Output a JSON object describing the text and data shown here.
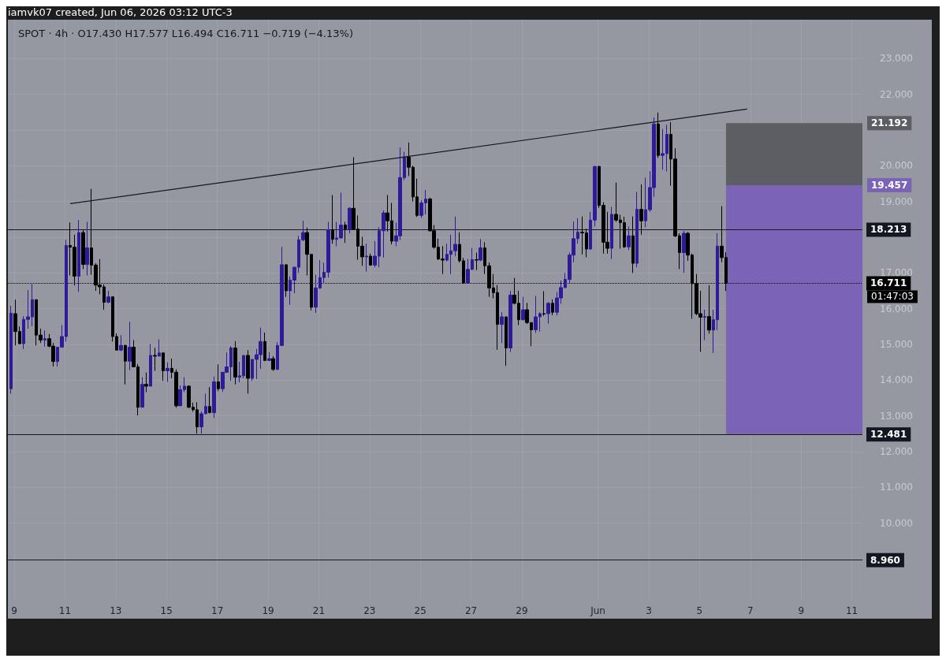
{
  "chart_data": {
    "type": "candlestick",
    "title": "iamvk07 created, Jun 06, 2026 03:12 UTC-3",
    "subtitle": "SPOT · 4h · O17.430 H17.577 L16.494 C16.711 −0.719 (−4.13%)",
    "x": [
      "2026-05-08T21:00",
      "2026-05-09T01:00",
      "2026-05-09T05:00",
      "2026-05-09T09:00",
      "2026-05-09T13:00",
      "2026-05-09T17:00",
      "2026-05-09T21:00",
      "2026-05-10T01:00",
      "2026-05-10T05:00",
      "2026-05-10T09:00",
      "2026-05-10T13:00",
      "2026-05-10T17:00",
      "2026-05-10T21:00",
      "2026-05-11T01:00",
      "2026-05-11T05:00",
      "2026-05-11T09:00",
      "2026-05-11T13:00",
      "2026-05-11T17:00",
      "2026-05-11T21:00",
      "2026-05-12T01:00",
      "2026-05-12T05:00",
      "2026-05-12T09:00",
      "2026-05-12T13:00",
      "2026-05-12T17:00",
      "2026-05-12T21:00",
      "2026-05-13T01:00",
      "2026-05-13T05:00",
      "2026-05-13T09:00",
      "2026-05-13T13:00",
      "2026-05-13T17:00",
      "2026-05-13T21:00",
      "2026-05-14T01:00",
      "2026-05-14T05:00",
      "2026-05-14T09:00",
      "2026-05-14T13:00",
      "2026-05-14T17:00",
      "2026-05-14T21:00",
      "2026-05-15T01:00",
      "2026-05-15T05:00",
      "2026-05-15T09:00",
      "2026-05-15T13:00",
      "2026-05-15T17:00",
      "2026-05-15T21:00",
      "2026-05-16T01:00",
      "2026-05-16T05:00",
      "2026-05-16T09:00",
      "2026-05-16T13:00",
      "2026-05-16T17:00",
      "2026-05-16T21:00",
      "2026-05-17T01:00",
      "2026-05-17T05:00",
      "2026-05-17T09:00",
      "2026-05-17T13:00",
      "2026-05-17T17:00",
      "2026-05-17T21:00",
      "2026-05-18T01:00",
      "2026-05-18T05:00",
      "2026-05-18T09:00",
      "2026-05-18T13:00",
      "2026-05-18T17:00",
      "2026-05-18T21:00",
      "2026-05-19T01:00",
      "2026-05-19T05:00",
      "2026-05-19T09:00",
      "2026-05-19T13:00",
      "2026-05-19T17:00",
      "2026-05-19T21:00",
      "2026-05-20T01:00",
      "2026-05-20T05:00",
      "2026-05-20T09:00",
      "2026-05-20T13:00",
      "2026-05-20T17:00",
      "2026-05-20T21:00",
      "2026-05-21T01:00",
      "2026-05-21T05:00",
      "2026-05-21T09:00",
      "2026-05-21T13:00",
      "2026-05-21T17:00",
      "2026-05-21T21:00",
      "2026-05-22T01:00",
      "2026-05-22T05:00",
      "2026-05-22T09:00",
      "2026-05-22T13:00",
      "2026-05-22T17:00",
      "2026-05-22T21:00",
      "2026-05-23T01:00",
      "2026-05-23T05:00",
      "2026-05-23T09:00",
      "2026-05-23T13:00",
      "2026-05-23T17:00",
      "2026-05-23T21:00",
      "2026-05-24T01:00",
      "2026-05-24T05:00",
      "2026-05-24T09:00",
      "2026-05-24T13:00",
      "2026-05-24T17:00",
      "2026-05-24T21:00",
      "2026-05-25T01:00",
      "2026-05-25T05:00",
      "2026-05-25T09:00",
      "2026-05-25T13:00",
      "2026-05-25T17:00",
      "2026-05-25T21:00",
      "2026-05-26T01:00",
      "2026-05-26T05:00",
      "2026-05-26T09:00",
      "2026-05-26T13:00",
      "2026-05-26T17:00",
      "2026-05-26T21:00",
      "2026-05-27T01:00",
      "2026-05-27T05:00",
      "2026-05-27T09:00",
      "2026-05-27T13:00",
      "2026-05-27T17:00",
      "2026-05-27T21:00",
      "2026-05-28T01:00",
      "2026-05-28T05:00",
      "2026-05-28T09:00",
      "2026-05-28T13:00",
      "2026-05-28T17:00",
      "2026-05-28T21:00",
      "2026-05-29T01:00",
      "2026-05-29T05:00",
      "2026-05-29T09:00",
      "2026-05-29T13:00",
      "2026-05-29T17:00",
      "2026-05-29T21:00",
      "2026-05-30T01:00",
      "2026-05-30T05:00",
      "2026-05-30T09:00",
      "2026-05-30T13:00",
      "2026-05-30T17:00",
      "2026-05-30T21:00",
      "2026-05-31T01:00",
      "2026-05-31T05:00",
      "2026-05-31T09:00",
      "2026-05-31T13:00",
      "2026-05-31T17:00",
      "2026-05-31T21:00",
      "2026-06-01T01:00",
      "2026-06-01T05:00",
      "2026-06-01T09:00",
      "2026-06-01T13:00",
      "2026-06-01T17:00",
      "2026-06-01T21:00",
      "2026-06-02T01:00",
      "2026-06-02T05:00",
      "2026-06-02T09:00",
      "2026-06-02T13:00",
      "2026-06-02T17:00",
      "2026-06-02T21:00",
      "2026-06-03T01:00",
      "2026-06-03T05:00",
      "2026-06-03T09:00",
      "2026-06-03T13:00",
      "2026-06-03T17:00",
      "2026-06-03T21:00",
      "2026-06-04T01:00",
      "2026-06-04T05:00",
      "2026-06-04T09:00",
      "2026-06-04T13:00",
      "2026-06-04T17:00",
      "2026-06-04T21:00",
      "2026-06-05T01:00",
      "2026-06-05T05:00",
      "2026-06-05T09:00",
      "2026-06-05T13:00",
      "2026-06-05T17:00",
      "2026-06-05T21:00",
      "2026-06-06T01:00"
    ],
    "ohlc": [
      [
        13.76,
        16.08,
        13.62,
        15.87
      ],
      [
        15.86,
        16.25,
        14.97,
        15.36
      ],
      [
        15.36,
        15.5,
        15.0,
        15.02
      ],
      [
        15.02,
        15.79,
        14.87,
        15.7
      ],
      [
        15.7,
        16.52,
        15.44,
        15.77
      ],
      [
        15.77,
        16.72,
        15.51,
        16.25
      ],
      [
        16.25,
        16.25,
        14.97,
        15.26
      ],
      [
        15.26,
        15.44,
        15.04,
        15.12
      ],
      [
        15.12,
        15.39,
        14.94,
        15.16
      ],
      [
        15.16,
        15.29,
        14.92,
        14.95
      ],
      [
        14.95,
        15.04,
        14.38,
        14.52
      ],
      [
        14.52,
        14.92,
        14.38,
        14.92
      ],
      [
        14.92,
        15.54,
        14.92,
        15.22
      ],
      [
        15.22,
        17.93,
        15.08,
        17.77
      ],
      [
        17.77,
        18.41,
        16.93,
        17.72
      ],
      [
        17.72,
        18.07,
        16.65,
        16.91
      ],
      [
        16.91,
        18.48,
        16.47,
        18.13
      ],
      [
        18.13,
        18.2,
        17.11,
        17.24
      ],
      [
        17.24,
        18.43,
        16.93,
        17.7
      ],
      [
        17.7,
        19.35,
        16.95,
        17.22
      ],
      [
        17.22,
        17.27,
        16.5,
        16.66
      ],
      [
        16.66,
        17.39,
        16.4,
        16.61
      ],
      [
        16.61,
        16.68,
        15.97,
        16.18
      ],
      [
        16.18,
        16.5,
        16.15,
        16.33
      ],
      [
        16.33,
        16.33,
        15.08,
        15.22
      ],
      [
        15.22,
        15.31,
        14.84,
        14.84
      ],
      [
        14.84,
        15.26,
        14.81,
        14.97
      ],
      [
        14.97,
        14.99,
        13.88,
        14.53
      ],
      [
        14.53,
        15.63,
        14.28,
        14.92
      ],
      [
        14.92,
        15.12,
        14.37,
        14.37
      ],
      [
        14.37,
        14.45,
        13.01,
        13.24
      ],
      [
        13.24,
        14.08,
        13.24,
        13.88
      ],
      [
        13.88,
        14.21,
        13.66,
        13.83
      ],
      [
        13.83,
        15.01,
        13.83,
        14.69
      ],
      [
        14.69,
        14.9,
        14.26,
        14.67
      ],
      [
        14.67,
        15.14,
        14.67,
        14.76
      ],
      [
        14.76,
        14.76,
        13.98,
        14.26
      ],
      [
        14.26,
        14.5,
        13.95,
        14.33
      ],
      [
        14.33,
        14.6,
        14.05,
        14.22
      ],
      [
        14.22,
        14.3,
        13.23,
        13.28
      ],
      [
        13.28,
        13.85,
        13.28,
        13.73
      ],
      [
        13.73,
        14.08,
        13.66,
        13.83
      ],
      [
        13.83,
        13.85,
        13.21,
        13.24
      ],
      [
        13.24,
        13.37,
        13.12,
        13.17
      ],
      [
        13.17,
        13.38,
        12.5,
        12.69
      ],
      [
        12.69,
        13.12,
        12.5,
        13.06
      ],
      [
        13.06,
        13.62,
        13.04,
        13.26
      ],
      [
        13.26,
        13.8,
        13.07,
        13.09
      ],
      [
        13.09,
        14.1,
        12.94,
        13.95
      ],
      [
        13.95,
        14.44,
        13.69,
        13.76
      ],
      [
        13.76,
        14.22,
        13.67,
        14.22
      ],
      [
        14.22,
        14.77,
        14.2,
        14.37
      ],
      [
        14.37,
        14.95,
        13.98,
        14.9
      ],
      [
        14.9,
        15.09,
        13.88,
        14.08
      ],
      [
        14.08,
        14.51,
        13.94,
        14.12
      ],
      [
        14.12,
        14.69,
        14.05,
        14.69
      ],
      [
        14.69,
        14.84,
        13.62,
        14.05
      ],
      [
        14.05,
        14.58,
        13.98,
        14.58
      ],
      [
        14.58,
        14.87,
        14.03,
        14.71
      ],
      [
        14.71,
        15.47,
        14.31,
        15.08
      ],
      [
        15.08,
        15.33,
        14.53,
        14.55
      ],
      [
        14.55,
        14.78,
        14.53,
        14.6
      ],
      [
        14.6,
        14.67,
        14.26,
        14.3
      ],
      [
        14.3,
        15.06,
        14.28,
        14.97
      ],
      [
        14.97,
        17.73,
        14.95,
        17.23
      ],
      [
        17.23,
        17.23,
        16.33,
        16.5
      ],
      [
        16.5,
        16.9,
        16.11,
        16.8
      ],
      [
        16.8,
        17.16,
        16.43,
        17.16
      ],
      [
        17.16,
        18.04,
        17.0,
        17.93
      ],
      [
        17.93,
        18.46,
        17.89,
        18.13
      ],
      [
        18.13,
        18.27,
        16.93,
        17.52
      ],
      [
        17.52,
        17.52,
        15.95,
        16.04
      ],
      [
        16.04,
        16.95,
        15.88,
        16.58
      ],
      [
        16.58,
        17.36,
        16.55,
        16.87
      ],
      [
        16.87,
        17.29,
        16.7,
        17.02
      ],
      [
        17.02,
        18.43,
        16.87,
        18.21
      ],
      [
        18.21,
        19.18,
        17.82,
        17.94
      ],
      [
        17.94,
        18.43,
        17.75,
        17.98
      ],
      [
        17.98,
        19.25,
        17.96,
        18.34
      ],
      [
        18.34,
        18.43,
        17.84,
        18.23
      ],
      [
        18.23,
        18.84,
        18.11,
        18.81
      ],
      [
        18.81,
        20.24,
        18.23,
        18.23
      ],
      [
        18.23,
        18.61,
        17.37,
        17.75
      ],
      [
        17.75,
        18.01,
        17.2,
        17.45
      ],
      [
        17.45,
        17.82,
        17.04,
        17.47
      ],
      [
        17.47,
        17.54,
        17.2,
        17.22
      ],
      [
        17.22,
        17.89,
        17.16,
        17.47
      ],
      [
        17.47,
        18.28,
        17.16,
        18.18
      ],
      [
        18.18,
        18.75,
        17.43,
        18.68
      ],
      [
        18.68,
        19.18,
        18.16,
        18.46
      ],
      [
        18.46,
        18.96,
        17.8,
        17.89
      ],
      [
        17.89,
        18.41,
        17.75,
        18.04
      ],
      [
        18.04,
        20.51,
        17.92,
        19.67
      ],
      [
        19.67,
        20.39,
        19.6,
        20.24
      ],
      [
        20.24,
        20.65,
        19.71,
        19.96
      ],
      [
        19.96,
        20.0,
        19.0,
        19.13
      ],
      [
        19.13,
        19.64,
        18.57,
        18.61
      ],
      [
        18.61,
        19.04,
        18.54,
        18.96
      ],
      [
        18.96,
        19.32,
        18.64,
        19.07
      ],
      [
        19.07,
        19.11,
        18.16,
        18.18
      ],
      [
        18.18,
        18.34,
        17.68,
        17.72
      ],
      [
        17.72,
        17.96,
        17.36,
        17.39
      ],
      [
        17.39,
        17.75,
        16.97,
        17.36
      ],
      [
        17.36,
        17.82,
        17.32,
        17.52
      ],
      [
        17.52,
        18.07,
        16.97,
        17.62
      ],
      [
        17.62,
        18.58,
        17.47,
        17.8
      ],
      [
        17.8,
        18.14,
        17.29,
        17.34
      ],
      [
        17.34,
        17.42,
        16.7,
        16.72
      ],
      [
        16.72,
        17.39,
        16.7,
        17.1
      ],
      [
        17.1,
        17.7,
        17.08,
        17.37
      ],
      [
        17.37,
        17.57,
        17.08,
        17.36
      ],
      [
        17.36,
        17.95,
        17.33,
        17.7
      ],
      [
        17.7,
        17.86,
        16.97,
        17.2
      ],
      [
        17.2,
        17.29,
        16.33,
        16.58
      ],
      [
        16.58,
        16.97,
        16.29,
        16.45
      ],
      [
        16.45,
        16.66,
        14.85,
        15.56
      ],
      [
        15.56,
        15.9,
        15.04,
        15.77
      ],
      [
        15.77,
        15.77,
        14.4,
        14.9
      ],
      [
        14.9,
        16.5,
        14.79,
        16.38
      ],
      [
        16.38,
        16.86,
        16.12,
        16.15
      ],
      [
        16.15,
        16.5,
        15.54,
        15.69
      ],
      [
        15.69,
        16.33,
        15.67,
        15.97
      ],
      [
        15.97,
        16.16,
        15.57,
        15.61
      ],
      [
        15.61,
        15.61,
        14.95,
        15.41
      ],
      [
        15.41,
        16.35,
        15.32,
        15.77
      ],
      [
        15.77,
        15.9,
        15.36,
        15.86
      ],
      [
        15.86,
        16.49,
        15.8,
        15.85
      ],
      [
        15.86,
        16.18,
        15.58,
        16.15
      ],
      [
        16.15,
        16.26,
        15.82,
        15.9
      ],
      [
        15.9,
        16.47,
        15.81,
        16.3
      ],
      [
        16.3,
        16.79,
        16.14,
        16.59
      ],
      [
        16.59,
        17.0,
        16.57,
        16.82
      ],
      [
        16.82,
        17.57,
        16.72,
        17.5
      ],
      [
        17.5,
        18.44,
        17.3,
        17.96
      ],
      [
        17.96,
        18.53,
        17.82,
        18.14
      ],
      [
        18.14,
        18.58,
        17.52,
        18.12
      ],
      [
        18.12,
        18.24,
        17.44,
        17.67
      ],
      [
        17.67,
        18.71,
        17.65,
        18.48
      ],
      [
        18.48,
        20.0,
        18.3,
        19.98
      ],
      [
        19.98,
        20.0,
        18.82,
        18.89
      ],
      [
        18.89,
        18.98,
        17.54,
        17.86
      ],
      [
        17.86,
        18.71,
        17.54,
        17.69
      ],
      [
        17.69,
        18.85,
        17.39,
        18.64
      ],
      [
        18.64,
        19.53,
        18.43,
        18.48
      ],
      [
        18.48,
        18.63,
        17.68,
        18.41
      ],
      [
        18.41,
        18.57,
        17.7,
        17.73
      ],
      [
        17.73,
        18.3,
        17.64,
        18.04
      ],
      [
        18.04,
        18.58,
        17.0,
        17.27
      ],
      [
        17.27,
        19.27,
        17.16,
        18.78
      ],
      [
        18.78,
        19.48,
        18.07,
        18.46
      ],
      [
        18.46,
        19.67,
        18.28,
        18.77
      ],
      [
        18.77,
        19.85,
        18.71,
        19.39
      ],
      [
        19.39,
        21.35,
        19.13,
        21.17
      ],
      [
        21.17,
        21.49,
        20.22,
        20.29
      ],
      [
        20.29,
        21.03,
        19.89,
        20.34
      ],
      [
        20.34,
        21.15,
        19.84,
        20.88
      ],
      [
        20.88,
        21.22,
        19.44,
        20.19
      ],
      [
        20.19,
        20.49,
        18.0,
        18.04
      ],
      [
        18.04,
        18.11,
        17.11,
        17.57
      ],
      [
        17.57,
        18.18,
        17.0,
        18.11
      ],
      [
        18.11,
        18.15,
        17.34,
        17.5
      ],
      [
        17.5,
        17.54,
        15.72,
        16.7
      ],
      [
        16.7,
        16.97,
        15.82,
        15.86
      ],
      [
        15.86,
        16.5,
        14.79,
        15.76
      ],
      [
        15.76,
        15.97,
        15.12,
        15.78
      ],
      [
        15.78,
        16.65,
        15.3,
        15.4
      ],
      [
        15.4,
        15.97,
        14.76,
        15.69
      ],
      [
        15.69,
        18.11,
        15.4,
        17.75
      ],
      [
        17.75,
        18.87,
        17.3,
        17.43
      ],
      [
        17.43,
        17.577,
        16.494,
        16.711
      ]
    ],
    "series": [
      {
        "type": "line",
        "color": "#131722",
        "x": [
          "2026-05-11T05:00",
          "2026-06-06T21:00"
        ],
        "values": [
          18.94,
          21.59
        ]
      }
    ],
    "ref_lines": [
      {
        "axis": "y",
        "value": 18.213,
        "label": "18.213",
        "color": "#131722",
        "line_style": "solid"
      },
      {
        "axis": "y",
        "value": 12.481,
        "label": "12.481",
        "color": "#131722",
        "line_style": "solid"
      },
      {
        "axis": "y",
        "value": 8.96,
        "label": "8.960",
        "color": "#131722",
        "line_style": "solid"
      },
      {
        "axis": "y",
        "value": 16.711,
        "label": "16.711",
        "color": "#000000",
        "line_style": "dotted"
      }
    ],
    "bands": [
      {
        "axis": "y",
        "from": 19.457,
        "to": 21.192,
        "label": "21.192",
        "color": "#5d5e63"
      },
      {
        "axis": "y",
        "from": 12.481,
        "to": 19.457,
        "label": "19.457",
        "color": "#7b63b6"
      }
    ],
    "annotations": [
      "01:47:03"
    ],
    "xlim": [
      "2026-05-08T18:00",
      "2026-06-11T10:00"
    ],
    "xticks": [
      {
        "value": "2026-05-09",
        "label": "9"
      },
      {
        "value": "2026-05-11",
        "label": "11"
      },
      {
        "value": "2026-05-13",
        "label": "13"
      },
      {
        "value": "2026-05-15",
        "label": "15"
      },
      {
        "value": "2026-05-17",
        "label": "17"
      },
      {
        "value": "2026-05-19",
        "label": "19"
      },
      {
        "value": "2026-05-21",
        "label": "21"
      },
      {
        "value": "2026-05-23",
        "label": "23"
      },
      {
        "value": "2026-05-25",
        "label": "25"
      },
      {
        "value": "2026-05-27",
        "label": "27"
      },
      {
        "value": "2026-05-29",
        "label": "29"
      },
      {
        "value": "2026-06-01",
        "label": "Jun"
      },
      {
        "value": "2026-06-03",
        "label": "3"
      },
      {
        "value": "2026-06-05",
        "label": "5"
      },
      {
        "value": "2026-06-07",
        "label": "7"
      },
      {
        "value": "2026-06-09",
        "label": "9"
      },
      {
        "value": "2026-06-11",
        "label": "11"
      }
    ],
    "ylim": [
      7.85,
      24.09
    ],
    "yticks": [
      {
        "value": 10,
        "label": "10.000"
      },
      {
        "value": 11,
        "label": "11.000"
      },
      {
        "value": 12,
        "label": "12.000"
      },
      {
        "value": 13,
        "label": "13.000"
      },
      {
        "value": 14,
        "label": "14.000"
      },
      {
        "value": 15,
        "label": "15.000"
      },
      {
        "value": 16,
        "label": "16.000"
      },
      {
        "value": 17,
        "label": "17.000"
      },
      {
        "value": 18,
        "label": null
      },
      {
        "value": 19,
        "label": "19.000"
      },
      {
        "value": 20,
        "label": "20.000"
      },
      {
        "value": 21,
        "label": null
      },
      {
        "value": 22,
        "label": "22.000"
      },
      {
        "value": 23,
        "label": "23.000"
      }
    ],
    "grid": true
  }
}
